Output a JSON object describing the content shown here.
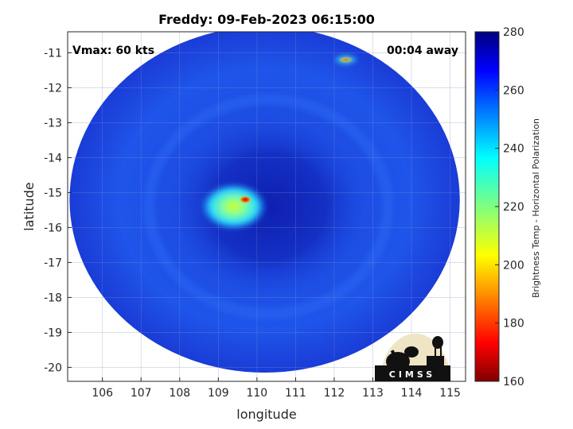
{
  "chart_data": {
    "type": "heatmap",
    "title": "Freddy: 09-Feb-2023 06:15:00",
    "xlabel": "longitude",
    "ylabel": "latitude",
    "xlim": [
      105.1,
      115.4
    ],
    "ylim": [
      -20.4,
      -10.4
    ],
    "xticks": [
      106,
      107,
      108,
      109,
      110,
      111,
      112,
      113,
      114,
      115
    ],
    "yticks": [
      -11,
      -12,
      -13,
      -14,
      -15,
      -16,
      -17,
      -18,
      -19,
      -20
    ],
    "grid": true,
    "colorbar": {
      "label": "Brightness Temp - Horizontal Polarization",
      "range": [
        160,
        280
      ],
      "ticks": [
        280,
        260,
        240,
        220,
        200,
        180,
        160
      ],
      "colormap": "jet"
    },
    "swath": {
      "center_lon": 110.2,
      "center_lat": -15.2,
      "radius_lon": 5.05,
      "radius_lat": 4.95
    },
    "background_temp": 262,
    "features": [
      {
        "name": "eye",
        "lon": 110.3,
        "lat": -15.4,
        "temp": 272
      },
      {
        "name": "cold convection west of eye",
        "lon": 109.4,
        "lat": -15.4,
        "temp": 215
      },
      {
        "name": "cold core",
        "lon": 109.7,
        "lat": -15.2,
        "temp": 185
      },
      {
        "name": "convective cell northeast",
        "lon": 112.3,
        "lat": -11.2,
        "temp": 195
      }
    ],
    "annotations": {
      "vmax": "Vmax: 60 kts",
      "time_away": "00:04 away"
    }
  },
  "logo": {
    "text": "CIMSS"
  },
  "colors": {
    "background": "#ffffff",
    "swath_base": "#1d4be6",
    "swath_edge": "#1431d8"
  }
}
